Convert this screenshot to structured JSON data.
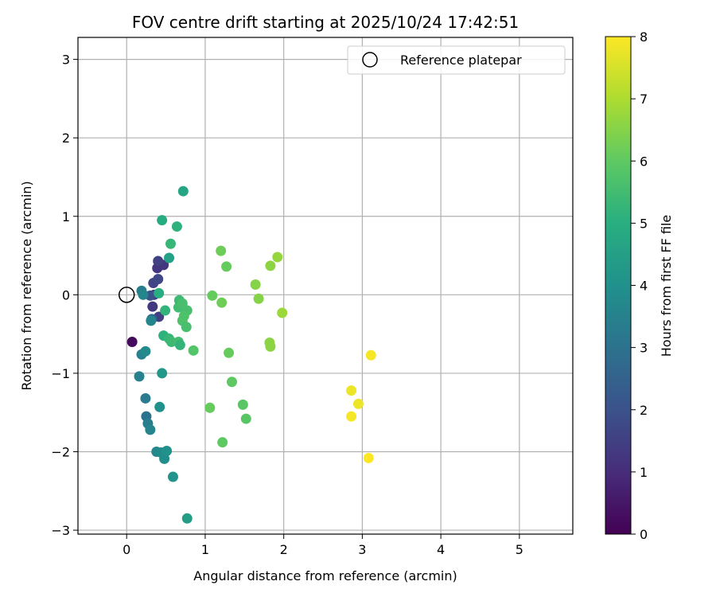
{
  "chart_data": {
    "type": "scatter",
    "title": "FOV centre drift starting at 2025/10/24 17:42:51",
    "xlabel": "Angular distance from reference (arcmin)",
    "ylabel": "Rotation from reference (arcmin)",
    "colorbar_label": "Hours from first FF file",
    "colormap": "viridis",
    "xlim": [
      -0.62,
      5.68
    ],
    "ylim": [
      -3.05,
      3.28
    ],
    "clim": [
      0,
      8
    ],
    "xticks": [
      0,
      1,
      2,
      3,
      4,
      5
    ],
    "xtick_labels": [
      "0",
      "1",
      "2",
      "3",
      "4",
      "5"
    ],
    "yticks": [
      -3,
      -2,
      -1,
      0,
      1,
      2,
      3
    ],
    "ytick_labels": [
      "−3",
      "−2",
      "−1",
      "0",
      "1",
      "2",
      "3"
    ],
    "cticks": [
      0,
      1,
      2,
      3,
      4,
      5,
      6,
      7,
      8
    ],
    "ctick_labels": [
      "0",
      "1",
      "2",
      "3",
      "4",
      "5",
      "6",
      "7",
      "8"
    ],
    "grid": true,
    "legend": {
      "position": "top-right",
      "entries": [
        "Reference platepar"
      ]
    },
    "reference_point": {
      "label": "Reference platepar",
      "x": 0,
      "y": 0
    },
    "points": [
      {
        "x": 0.07,
        "y": -0.6,
        "t": 0.2
      },
      {
        "x": 0.47,
        "y": 0.38,
        "t": 1.3
      },
      {
        "x": 0.39,
        "y": 0.34,
        "t": 1.2
      },
      {
        "x": 0.4,
        "y": 0.43,
        "t": 1.5
      },
      {
        "x": 0.34,
        "y": 0.15,
        "t": 1.6
      },
      {
        "x": 0.4,
        "y": 0.2,
        "t": 1.7
      },
      {
        "x": 0.35,
        "y": 0.0,
        "t": 1.4
      },
      {
        "x": 0.33,
        "y": -0.15,
        "t": 1.3
      },
      {
        "x": 0.41,
        "y": -0.28,
        "t": 1.5
      },
      {
        "x": 0.3,
        "y": -0.01,
        "t": 2.0
      },
      {
        "x": 0.32,
        "y": -0.31,
        "t": 2.6
      },
      {
        "x": 0.19,
        "y": 0.05,
        "t": 3.4
      },
      {
        "x": 0.21,
        "y": 0.0,
        "t": 3.6
      },
      {
        "x": 0.31,
        "y": -0.33,
        "t": 3.6
      },
      {
        "x": 0.19,
        "y": -0.76,
        "t": 3.5
      },
      {
        "x": 0.24,
        "y": -0.72,
        "t": 3.8
      },
      {
        "x": 0.16,
        "y": -1.04,
        "t": 3.5
      },
      {
        "x": 0.24,
        "y": -1.32,
        "t": 3.3
      },
      {
        "x": 0.25,
        "y": -1.55,
        "t": 3.0
      },
      {
        "x": 0.27,
        "y": -1.64,
        "t": 3.4
      },
      {
        "x": 0.3,
        "y": -1.72,
        "t": 3.6
      },
      {
        "x": 0.38,
        "y": -2.0,
        "t": 3.7
      },
      {
        "x": 0.44,
        "y": -2.01,
        "t": 3.8
      },
      {
        "x": 0.48,
        "y": -2.09,
        "t": 3.9
      },
      {
        "x": 0.51,
        "y": -1.99,
        "t": 4.0
      },
      {
        "x": 0.59,
        "y": -2.32,
        "t": 4.1
      },
      {
        "x": 0.42,
        "y": -1.43,
        "t": 4.0
      },
      {
        "x": 0.45,
        "y": -1.0,
        "t": 4.2
      },
      {
        "x": 0.77,
        "y": -2.85,
        "t": 4.4
      },
      {
        "x": 0.72,
        "y": 1.32,
        "t": 4.7
      },
      {
        "x": 0.45,
        "y": 0.95,
        "t": 4.9
      },
      {
        "x": 0.64,
        "y": 0.87,
        "t": 5.1
      },
      {
        "x": 0.56,
        "y": 0.65,
        "t": 5.3
      },
      {
        "x": 0.54,
        "y": 0.47,
        "t": 4.6
      },
      {
        "x": 0.41,
        "y": 0.02,
        "t": 5.0
      },
      {
        "x": 0.49,
        "y": -0.2,
        "t": 5.2
      },
      {
        "x": 0.47,
        "y": -0.52,
        "t": 5.1
      },
      {
        "x": 0.54,
        "y": -0.56,
        "t": 5.3
      },
      {
        "x": 0.57,
        "y": -0.6,
        "t": 5.4
      },
      {
        "x": 0.66,
        "y": -0.6,
        "t": 5.5
      },
      {
        "x": 0.68,
        "y": -0.64,
        "t": 5.2
      },
      {
        "x": 0.67,
        "y": -0.07,
        "t": 5.4
      },
      {
        "x": 0.66,
        "y": -0.16,
        "t": 5.5
      },
      {
        "x": 0.71,
        "y": -0.11,
        "t": 5.6
      },
      {
        "x": 0.77,
        "y": -0.2,
        "t": 5.6
      },
      {
        "x": 0.73,
        "y": -0.27,
        "t": 5.7
      },
      {
        "x": 0.71,
        "y": -0.33,
        "t": 5.7
      },
      {
        "x": 0.76,
        "y": -0.41,
        "t": 5.6
      },
      {
        "x": 0.85,
        "y": -0.71,
        "t": 5.8
      },
      {
        "x": 1.2,
        "y": 0.56,
        "t": 6.2
      },
      {
        "x": 1.27,
        "y": 0.36,
        "t": 6.1
      },
      {
        "x": 1.09,
        "y": -0.01,
        "t": 6.1
      },
      {
        "x": 1.21,
        "y": -0.1,
        "t": 6.2
      },
      {
        "x": 1.3,
        "y": -0.74,
        "t": 6.1
      },
      {
        "x": 1.34,
        "y": -1.11,
        "t": 6.0
      },
      {
        "x": 1.06,
        "y": -1.44,
        "t": 6.1
      },
      {
        "x": 1.48,
        "y": -1.4,
        "t": 5.9
      },
      {
        "x": 1.52,
        "y": -1.58,
        "t": 5.9
      },
      {
        "x": 1.22,
        "y": -1.88,
        "t": 6.0
      },
      {
        "x": 1.64,
        "y": 0.13,
        "t": 6.5
      },
      {
        "x": 1.68,
        "y": -0.05,
        "t": 6.5
      },
      {
        "x": 1.83,
        "y": 0.37,
        "t": 6.6
      },
      {
        "x": 1.92,
        "y": 0.48,
        "t": 6.7
      },
      {
        "x": 1.98,
        "y": -0.23,
        "t": 6.8
      },
      {
        "x": 1.82,
        "y": -0.61,
        "t": 6.6
      },
      {
        "x": 1.83,
        "y": -0.66,
        "t": 6.6
      },
      {
        "x": 2.86,
        "y": -1.22,
        "t": 7.8
      },
      {
        "x": 2.86,
        "y": -1.55,
        "t": 7.9
      },
      {
        "x": 2.95,
        "y": -1.39,
        "t": 7.8
      },
      {
        "x": 3.11,
        "y": -0.77,
        "t": 7.9
      },
      {
        "x": 3.08,
        "y": -2.08,
        "t": 8.0
      }
    ]
  }
}
